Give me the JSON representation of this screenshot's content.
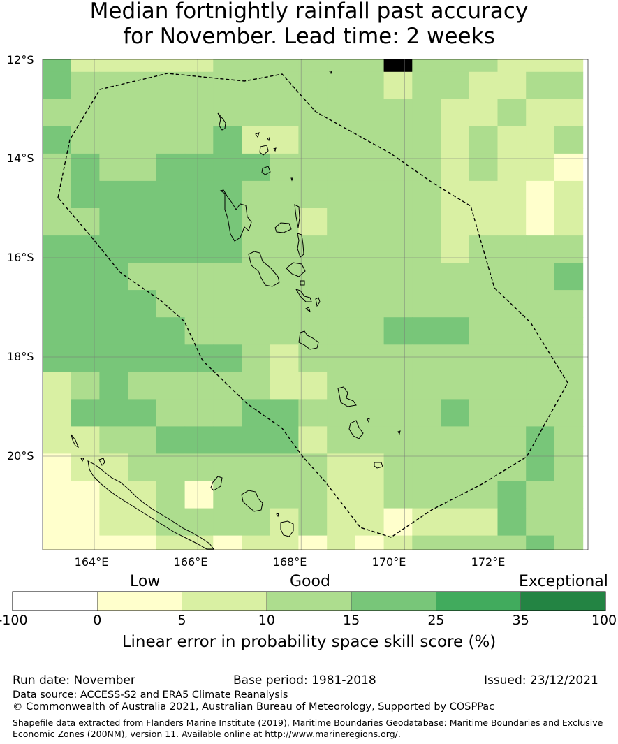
{
  "title": {
    "line1": "Median fortnightly rainfall past accuracy",
    "line2": "for November. Lead time: 2 weeks"
  },
  "map": {
    "lat_labels": [
      "12°S",
      "14°S",
      "16°S",
      "18°S",
      "20°S"
    ],
    "lon_labels": [
      "164°E",
      "166°E",
      "168°E",
      "170°E",
      "172°E"
    ],
    "grid_rows_lat_top": [
      -12,
      -12.25,
      -12.8,
      -13.35,
      -13.9,
      -14.45,
      -15.0,
      -15.55,
      -16.1,
      -16.65,
      -17.2,
      -17.75,
      -18.3,
      -18.85,
      -19.4,
      -19.95,
      -20.5,
      -21.05,
      -21.6
    ],
    "cell_classes": [
      "3111112222224222111",
      "3222222222221221122",
      "2222222222222211211",
      "3222223112222212112",
      "2322333322222212110",
      "2333333222222211101",
      "2233333221222211101",
      "3333333222222212222",
      "3332222222222222223",
      "3333222222222222222",
      "3333322222223332222",
      "3333333212222222222",
      "1232222211222222222",
      "1333222332222232222",
      "1122333331222222232",
      "0112222222112222232",
      "0011202222112222322",
      "0011222212110111322",
      "0000110110101222232"
    ]
  },
  "legend": {
    "categories": [
      "Low",
      "Good",
      "Exceptional"
    ],
    "bins": [
      {
        "from": -100,
        "to": 0,
        "color": "#ffffff"
      },
      {
        "from": 0,
        "to": 5,
        "color": "#ffffcc"
      },
      {
        "from": 5,
        "to": 10,
        "color": "#d9f0a3"
      },
      {
        "from": 10,
        "to": 15,
        "color": "#addd8e"
      },
      {
        "from": 15,
        "to": 25,
        "color": "#78c679"
      },
      {
        "from": 25,
        "to": 35,
        "color": "#41ab5d"
      },
      {
        "from": 35,
        "to": 100,
        "color": "#238443"
      }
    ],
    "tick_labels": [
      "-100",
      "0",
      "5",
      "10",
      "15",
      "25",
      "35",
      "100"
    ],
    "axis_title": "Linear error in probability space skill score (%)"
  },
  "footer": {
    "run_date": "Run date: November",
    "base_period": "Base period: 1981-2018",
    "issued": "Issued: 23/12/2021",
    "data_source": "Data source: ACCESS-S2 and ERA5 Climate Reanalysis",
    "copyright": "© Commonwealth of Australia 2021, Australian Bureau of Meteorology, Supported by COSPPac",
    "shapefile_line1": "Shapefile data extracted from Flanders Marine Institute (2019), Maritime Boundaries Geodatabase: Maritime Boundaries and Exclusive",
    "shapefile_line2": "Economic Zones (200NM), version 11. Available online at http://www.marineregions.org/."
  }
}
